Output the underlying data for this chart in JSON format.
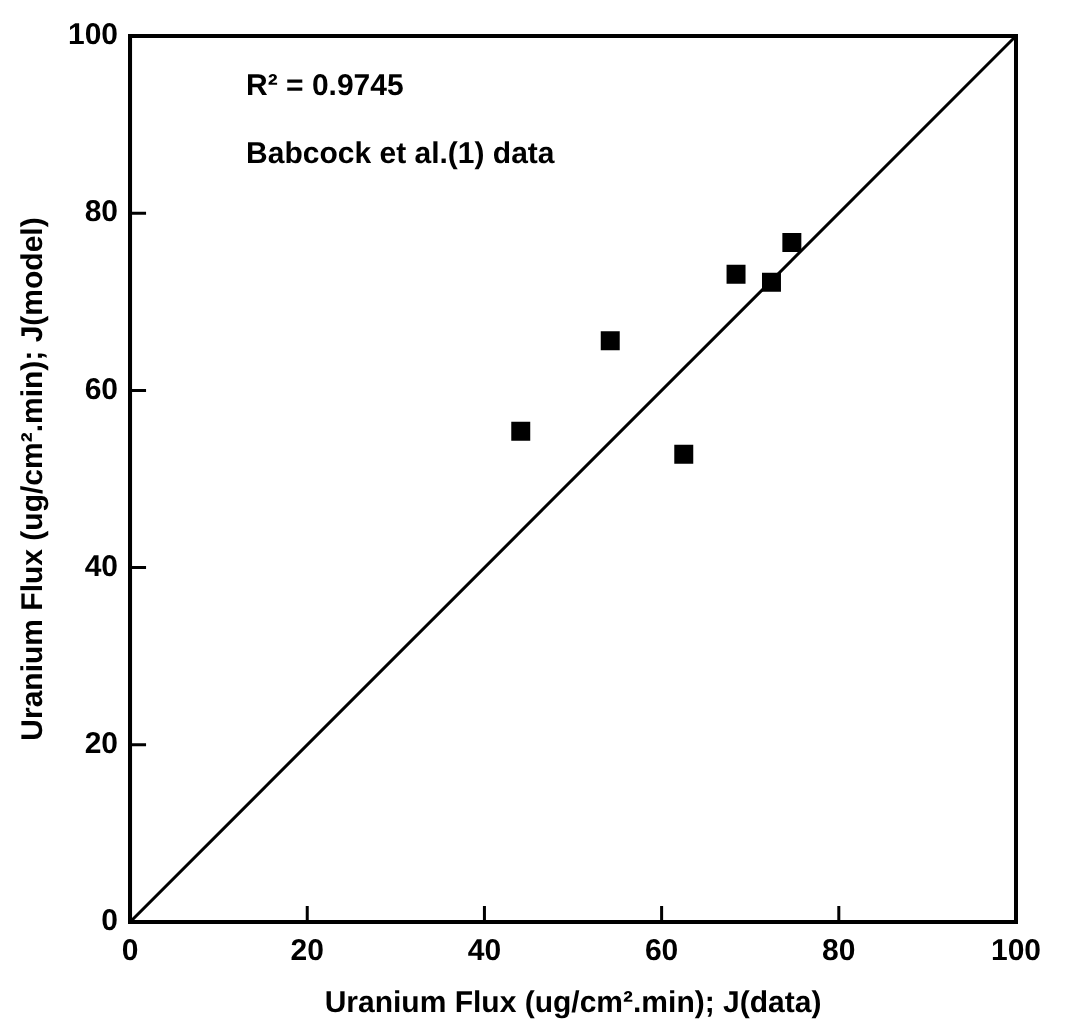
{
  "chart_data": {
    "type": "scatter",
    "xlabel": "Uranium Flux (ug/cm².min); J(data)",
    "ylabel": "Uranium Flux (ug/cm².min); J(model)",
    "annotations": [
      "R² = 0.9745",
      "Babcock et al.(1) data"
    ],
    "xlim": [
      0,
      100
    ],
    "ylim": [
      0,
      100
    ],
    "xticks": [
      0,
      20,
      40,
      60,
      80,
      100
    ],
    "yticks": [
      0,
      20,
      40,
      60,
      80,
      100
    ],
    "grid": false,
    "legend": false,
    "series": [
      {
        "marker": "square",
        "color": "#000000",
        "x": [
          44.1,
          54.2,
          62.5,
          68.4,
          72.4,
          74.7
        ],
        "values": [
          55.4,
          65.6,
          52.8,
          73.1,
          72.2,
          76.7
        ]
      },
      {
        "type": "line",
        "marker": "none",
        "color": "#000000",
        "x": [
          0,
          100
        ],
        "values": [
          0,
          100
        ]
      }
    ]
  }
}
